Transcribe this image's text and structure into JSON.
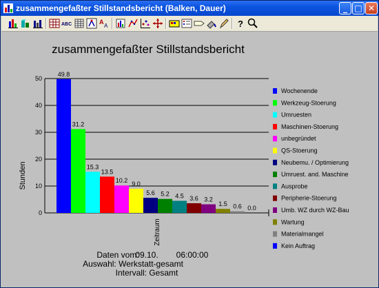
{
  "window": {
    "title": "zusammengefaßter Stillstandsbericht (Balken, Dauer)",
    "controls": {
      "minimize": "_",
      "maximize": "□",
      "close": "✕"
    }
  },
  "toolbar": {
    "buttons": [
      {
        "name": "bar-chart-icon"
      },
      {
        "name": "3d-chart-icon"
      },
      {
        "name": "grouped-bar-icon"
      },
      {
        "name": "table-grid-icon"
      },
      {
        "name": "abc-text-icon",
        "label": "ABC"
      },
      {
        "name": "data-grid-icon"
      },
      {
        "name": "pivot-icon"
      },
      {
        "name": "font-size-icon"
      },
      {
        "name": "series-icon"
      },
      {
        "name": "sort-icon"
      },
      {
        "name": "scatter-icon"
      },
      {
        "name": "move-icon"
      },
      {
        "name": "palette-icon"
      },
      {
        "name": "legend-icon"
      },
      {
        "name": "label-icon"
      },
      {
        "name": "paint-icon"
      },
      {
        "name": "pen-icon"
      },
      {
        "name": "help-icon",
        "label": "?"
      },
      {
        "name": "zoom-icon"
      }
    ]
  },
  "chart_data": {
    "type": "bar",
    "title": "zusammengefaßter Stillstandsbericht",
    "ylabel": "Stunden",
    "xlabel": "Zeitraum",
    "ylim": [
      0,
      50
    ],
    "yticks": [
      "0",
      "10",
      "20",
      "30",
      "40",
      "50"
    ],
    "grid": true,
    "legend_position": "right",
    "series": [
      {
        "name": "Wochenende",
        "value": 49.8,
        "label": "49.8",
        "color": "#0000ff"
      },
      {
        "name": "Werkzeug-Stoerung",
        "value": 31.2,
        "label": "31.2",
        "color": "#00ff00"
      },
      {
        "name": "Umruesten",
        "value": 15.3,
        "label": "15.3",
        "color": "#00ffff"
      },
      {
        "name": "Maschinen-Stoerung",
        "value": 13.5,
        "label": "13.5",
        "color": "#ff0000"
      },
      {
        "name": "unbegründet",
        "value": 10.2,
        "label": "10.2",
        "color": "#ff00ff"
      },
      {
        "name": "QS-Stoerung",
        "value": 9.0,
        "label": "9.0",
        "color": "#ffff00"
      },
      {
        "name": "Neubemu. / Optimierung",
        "value": 5.6,
        "label": "5.6",
        "color": "#000080"
      },
      {
        "name": "Umruest. and. Maschine",
        "value": 5.2,
        "label": "5.2",
        "color": "#008000"
      },
      {
        "name": "Ausprobe",
        "value": 4.5,
        "label": "4.5",
        "color": "#008080"
      },
      {
        "name": "Peripherie-Stoerung",
        "value": 3.6,
        "label": "3.6",
        "color": "#800000"
      },
      {
        "name": "Umb. WZ durch WZ-Bau",
        "value": 3.2,
        "label": "3.2",
        "color": "#800080"
      },
      {
        "name": "Wartung",
        "value": 1.5,
        "label": "1.5",
        "color": "#808000"
      },
      {
        "name": "Materialmangel",
        "value": 0.6,
        "label": "0.6",
        "color": "#808080"
      },
      {
        "name": "Kein Auftrag",
        "value": 0.0,
        "label": "0.0",
        "color": "#0000ff"
      }
    ],
    "footer": {
      "line1_prefix": "Daten vom:",
      "date": "09.10.",
      "time": "06:00:00",
      "line2": "Auswahl: Werkstatt-gesamt",
      "line3": "Intervall: Gesamt"
    }
  }
}
